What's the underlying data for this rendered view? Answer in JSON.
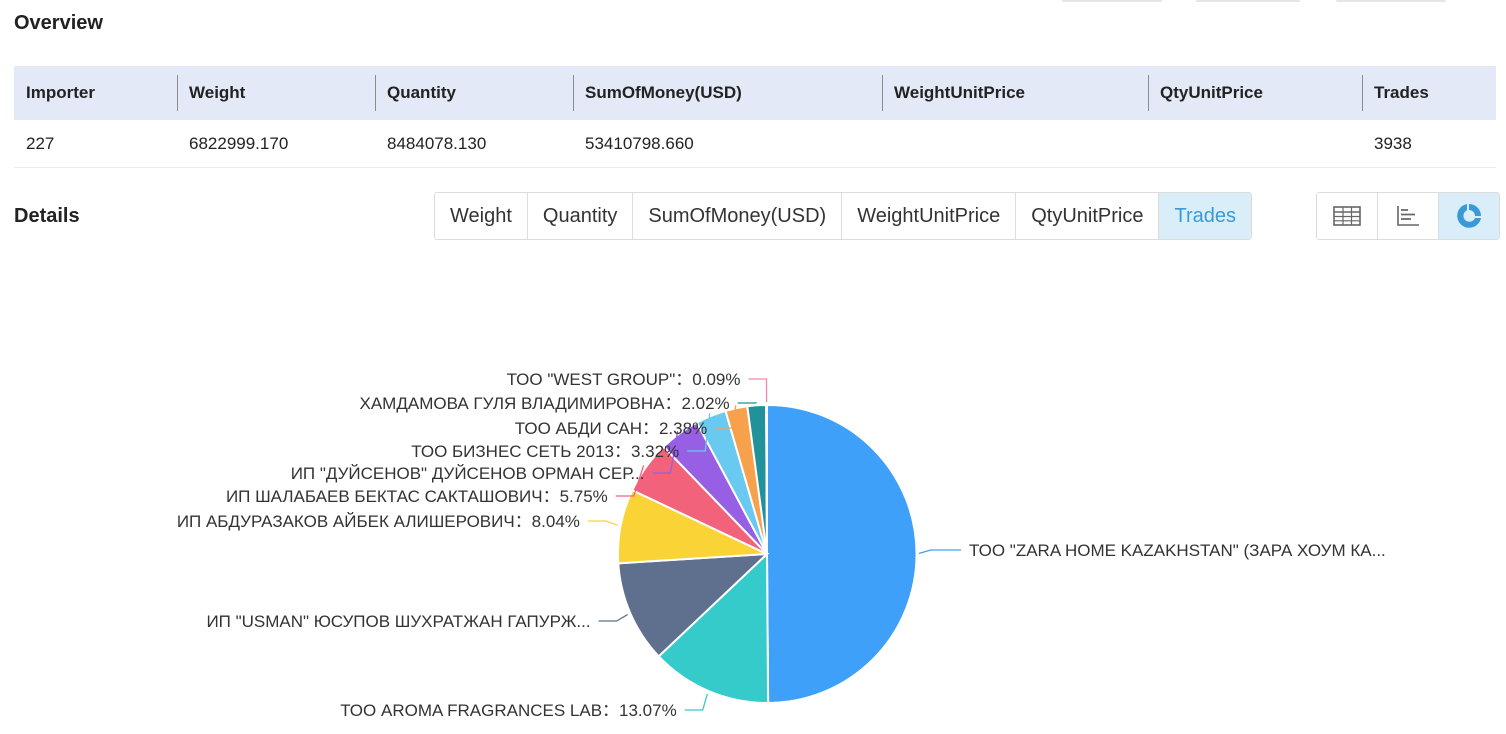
{
  "overview": {
    "title": "Overview",
    "columns": [
      "Importer",
      "Weight",
      "Quantity",
      "SumOfMoney(USD)",
      "WeightUnitPrice",
      "QtyUnitPrice",
      "Trades"
    ],
    "row": [
      "227",
      "6822999.170",
      "8484078.130",
      "53410798.660",
      "",
      "",
      "3938"
    ]
  },
  "details": {
    "title": "Details",
    "tabs": [
      "Weight",
      "Quantity",
      "SumOfMoney(USD)",
      "WeightUnitPrice",
      "QtyUnitPrice",
      "Trades"
    ],
    "active_tab": "Trades",
    "view_buttons": [
      {
        "icon": "table-icon",
        "active": false
      },
      {
        "icon": "bar-chart-icon",
        "active": false
      },
      {
        "icon": "donut-chart-icon",
        "active": true
      }
    ]
  },
  "colors": {
    "accent": "#3a9ad9",
    "header_bg": "#e3e9f7",
    "active_tab_bg": "#daeefa"
  },
  "chart_data": {
    "type": "pie",
    "series": [
      {
        "name": "ТОО \"ZARA HOME KAZAKHSTAN\" (ЗАРА ХОУМ КА...",
        "value": 49.88,
        "label": "",
        "color": "#3ea0f8"
      },
      {
        "name": "ТОО AROMA FRAGRANCES LAB",
        "value": 13.07,
        "label": "13.07%",
        "color": "#36cbcb"
      },
      {
        "name": "ИП \"USMAN\" ЮСУПОВ ШУХРАТЖАН ГАПУРЖ...",
        "value": 11.05,
        "label": "",
        "color": "#5f6f8e"
      },
      {
        "name": "ИП АБДУРАЗАКОВ АЙБЕК АЛИШЕРОВИЧ",
        "value": 8.04,
        "label": "8.04%",
        "color": "#fad337"
      },
      {
        "name": "ИП ШАЛАБАЕВ БЕКТАС САКТАШОВИЧ",
        "value": 5.75,
        "label": "5.75%",
        "color": "#f2637b"
      },
      {
        "name": "ИП \"ДУЙСЕНОВ\" ДУЙСЕНОВ ОРМАН СЕР...",
        "value": 4.4,
        "label": "",
        "color": "#975fe4"
      },
      {
        "name": "ТОО БИЗНЕС СЕТЬ 2013",
        "value": 3.32,
        "label": "3.32%",
        "color": "#6ac9f0"
      },
      {
        "name": "ТОО АБДИ САН",
        "value": 2.38,
        "label": "2.38%",
        "color": "#f8a14d"
      },
      {
        "name": "ХАМДАМОВА ГУЛЯ ВЛАДИМИРОВНА",
        "value": 2.02,
        "label": "2.02%",
        "color": "#22929a"
      },
      {
        "name": "ТОО \"WEST GROUP\"",
        "value": 0.09,
        "label": "0.09%",
        "color": "#f286b0"
      }
    ]
  }
}
